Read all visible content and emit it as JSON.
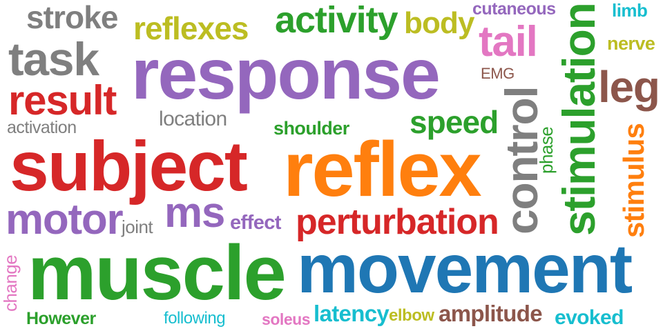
{
  "words": {
    "stroke": "stroke",
    "reflexes": "reflexes",
    "activity": "activity",
    "body": "body",
    "cutaneous": "cutaneous",
    "limb": "limb",
    "task": "task",
    "response": "response",
    "tail": "tail",
    "nerve": "nerve",
    "emg": "EMG",
    "result": "result",
    "leg": "leg",
    "activation": "activation",
    "location": "location",
    "shoulder": "shoulder",
    "speed": "speed",
    "subject": "subject",
    "reflex": "reflex",
    "control": "control",
    "phase": "phase",
    "stimulation": "stimulation",
    "stimulus": "stimulus",
    "motor": "motor",
    "ms": "ms",
    "joint": "joint",
    "effect": "effect",
    "perturbation": "perturbation",
    "change": "change",
    "muscle": "muscle",
    "movement": "movement",
    "however": "However",
    "following": "following",
    "soleus": "soleus",
    "latency": "latency",
    "elbow": "elbow",
    "amplitude": "amplitude",
    "evoked": "evoked"
  },
  "colors": {
    "gray": "#7f7f7f",
    "olive": "#bcbd22",
    "green": "#2ca02c",
    "purple": "#9467bd",
    "pink": "#e377c2",
    "cyan": "#17becf",
    "red": "#d62728",
    "brown": "#8c564b",
    "orange": "#ff7f0e",
    "blue": "#1f77b4"
  }
}
